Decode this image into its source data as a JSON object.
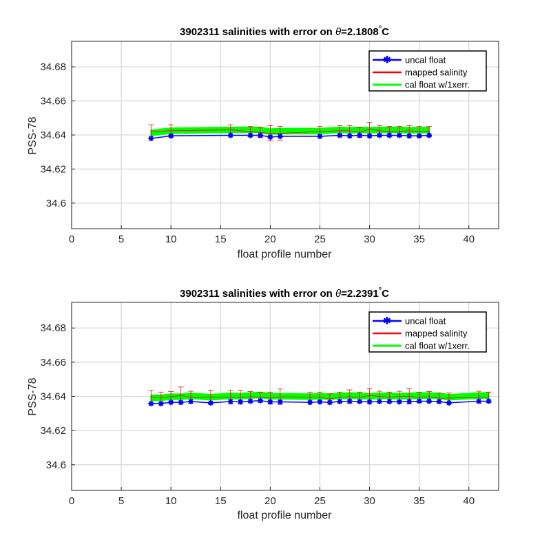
{
  "chart_data": [
    {
      "type": "line",
      "title": "3902311 salinities with error on θ=2.1808˚C",
      "title_prefix": "3902311 salinities with error on ",
      "title_theta": "θ",
      "title_value": "=2.1808",
      "title_deg": "°",
      "title_unit": "C",
      "xlabel": "float profile number",
      "ylabel": "PSS-78",
      "xlim": [
        0,
        43
      ],
      "ylim": [
        34.585,
        34.695
      ],
      "xticks": [
        0,
        5,
        10,
        15,
        20,
        25,
        30,
        35,
        40
      ],
      "xtick_labels": [
        "0",
        "5",
        "10",
        "15",
        "20",
        "25",
        "30",
        "35",
        "40"
      ],
      "yticks": [
        34.6,
        34.62,
        34.64,
        34.66,
        34.68
      ],
      "ytick_labels": [
        "34.6",
        "34.62",
        "34.64",
        "34.66",
        "34.68"
      ],
      "grid": true,
      "legend_position": "top-right",
      "legend": [
        "uncal float",
        "mapped salinity",
        "cal float w/1xerr."
      ],
      "colors": {
        "uncal": "#0000ff",
        "mapped": "#ff0000",
        "cal": "#00ff00"
      },
      "profiles": [
        8,
        10,
        16,
        18,
        19,
        20,
        21,
        25,
        27,
        28,
        29,
        30,
        31,
        32,
        33,
        34,
        35,
        36
      ],
      "uncal_float": [
        34.638,
        34.6395,
        34.6398,
        34.6398,
        34.6398,
        34.6388,
        34.6392,
        34.6392,
        34.6398,
        34.6395,
        34.6398,
        34.6395,
        34.6398,
        34.6398,
        34.6398,
        34.6395,
        34.6395,
        34.6398
      ],
      "mapped_salinity": [
        34.642,
        34.6425,
        34.643,
        34.642,
        34.6415,
        34.641,
        34.641,
        34.642,
        34.6425,
        34.6425,
        34.6415,
        34.6435,
        34.6425,
        34.642,
        34.642,
        34.6425,
        34.642,
        34.642
      ],
      "mapped_error": [
        0.004,
        0.0035,
        0.003,
        0.003,
        0.003,
        0.0045,
        0.004,
        0.003,
        0.003,
        0.003,
        0.003,
        0.004,
        0.003,
        0.003,
        0.003,
        0.003,
        0.003,
        0.003
      ],
      "cal_float": [
        34.6413,
        34.6425,
        34.643,
        34.643,
        34.643,
        34.642,
        34.6423,
        34.6423,
        34.643,
        34.6428,
        34.643,
        34.6428,
        34.643,
        34.643,
        34.643,
        34.6428,
        34.6428,
        34.643
      ],
      "cal_error": [
        0.0015,
        0.0015,
        0.0015,
        0.0015,
        0.0015,
        0.0015,
        0.0015,
        0.0015,
        0.0015,
        0.0015,
        0.0015,
        0.0015,
        0.0015,
        0.0015,
        0.0015,
        0.0015,
        0.0015,
        0.0015
      ]
    },
    {
      "type": "line",
      "title": "3902311 salinities with error on θ=2.2391˚C",
      "title_prefix": "3902311 salinities with error on ",
      "title_theta": "θ",
      "title_value": "=2.2391",
      "title_deg": "°",
      "title_unit": "C",
      "xlabel": "float profile number",
      "ylabel": "PSS-78",
      "xlim": [
        0,
        43
      ],
      "ylim": [
        34.585,
        34.695
      ],
      "xticks": [
        0,
        5,
        10,
        15,
        20,
        25,
        30,
        35,
        40
      ],
      "xtick_labels": [
        "0",
        "5",
        "10",
        "15",
        "20",
        "25",
        "30",
        "35",
        "40"
      ],
      "yticks": [
        34.6,
        34.62,
        34.64,
        34.66,
        34.68
      ],
      "ytick_labels": [
        "34.6",
        "34.62",
        "34.64",
        "34.66",
        "34.68"
      ],
      "grid": true,
      "legend_position": "top-right",
      "legend": [
        "uncal float",
        "mapped salinity",
        "cal float w/1xerr."
      ],
      "colors": {
        "uncal": "#0000ff",
        "mapped": "#ff0000",
        "cal": "#00ff00"
      },
      "profiles": [
        8,
        9,
        10,
        11,
        12,
        14,
        16,
        17,
        18,
        19,
        20,
        21,
        24,
        25,
        26,
        27,
        28,
        29,
        30,
        31,
        32,
        33,
        34,
        35,
        36,
        37,
        38,
        41,
        42
      ],
      "uncal_float": [
        34.6358,
        34.6358,
        34.6365,
        34.6365,
        34.637,
        34.6362,
        34.637,
        34.6368,
        34.6372,
        34.6375,
        34.6368,
        34.6368,
        34.6365,
        34.6368,
        34.6365,
        34.637,
        34.6372,
        34.637,
        34.6368,
        34.637,
        34.637,
        34.6368,
        34.637,
        34.6372,
        34.6372,
        34.637,
        34.6362,
        34.6372,
        34.6372
      ],
      "mapped_salinity": [
        34.6395,
        34.6395,
        34.6398,
        34.6405,
        34.6395,
        34.6395,
        34.6395,
        34.6395,
        34.6398,
        34.6395,
        34.639,
        34.6398,
        34.6395,
        34.6395,
        34.6385,
        34.6395,
        34.6398,
        34.6395,
        34.6405,
        34.64,
        34.6395,
        34.64,
        34.64,
        34.6395,
        34.6398,
        34.639,
        34.639,
        34.6395,
        34.6395
      ],
      "mapped_error": [
        0.004,
        0.003,
        0.003,
        0.005,
        0.0035,
        0.004,
        0.004,
        0.004,
        0.003,
        0.003,
        0.0035,
        0.0045,
        0.003,
        0.003,
        0.003,
        0.003,
        0.004,
        0.003,
        0.004,
        0.003,
        0.003,
        0.003,
        0.0045,
        0.003,
        0.003,
        0.003,
        0.003,
        0.0035,
        0.003
      ],
      "cal_float": [
        34.6392,
        34.6392,
        34.6398,
        34.6398,
        34.6403,
        34.6395,
        34.6403,
        34.6401,
        34.6405,
        34.6408,
        34.6401,
        34.6401,
        34.6398,
        34.6401,
        34.6398,
        34.6403,
        34.6405,
        34.6403,
        34.6401,
        34.6403,
        34.6403,
        34.6401,
        34.6403,
        34.6405,
        34.6405,
        34.6403,
        34.6395,
        34.6405,
        34.6405
      ],
      "cal_error": [
        0.0015,
        0.0015,
        0.0015,
        0.0015,
        0.0015,
        0.0015,
        0.0015,
        0.0015,
        0.0015,
        0.0015,
        0.0015,
        0.0015,
        0.0015,
        0.0015,
        0.0015,
        0.0015,
        0.0015,
        0.0015,
        0.0015,
        0.0015,
        0.0015,
        0.0015,
        0.0015,
        0.0015,
        0.0015,
        0.0015,
        0.0015,
        0.0015,
        0.0015
      ]
    }
  ]
}
